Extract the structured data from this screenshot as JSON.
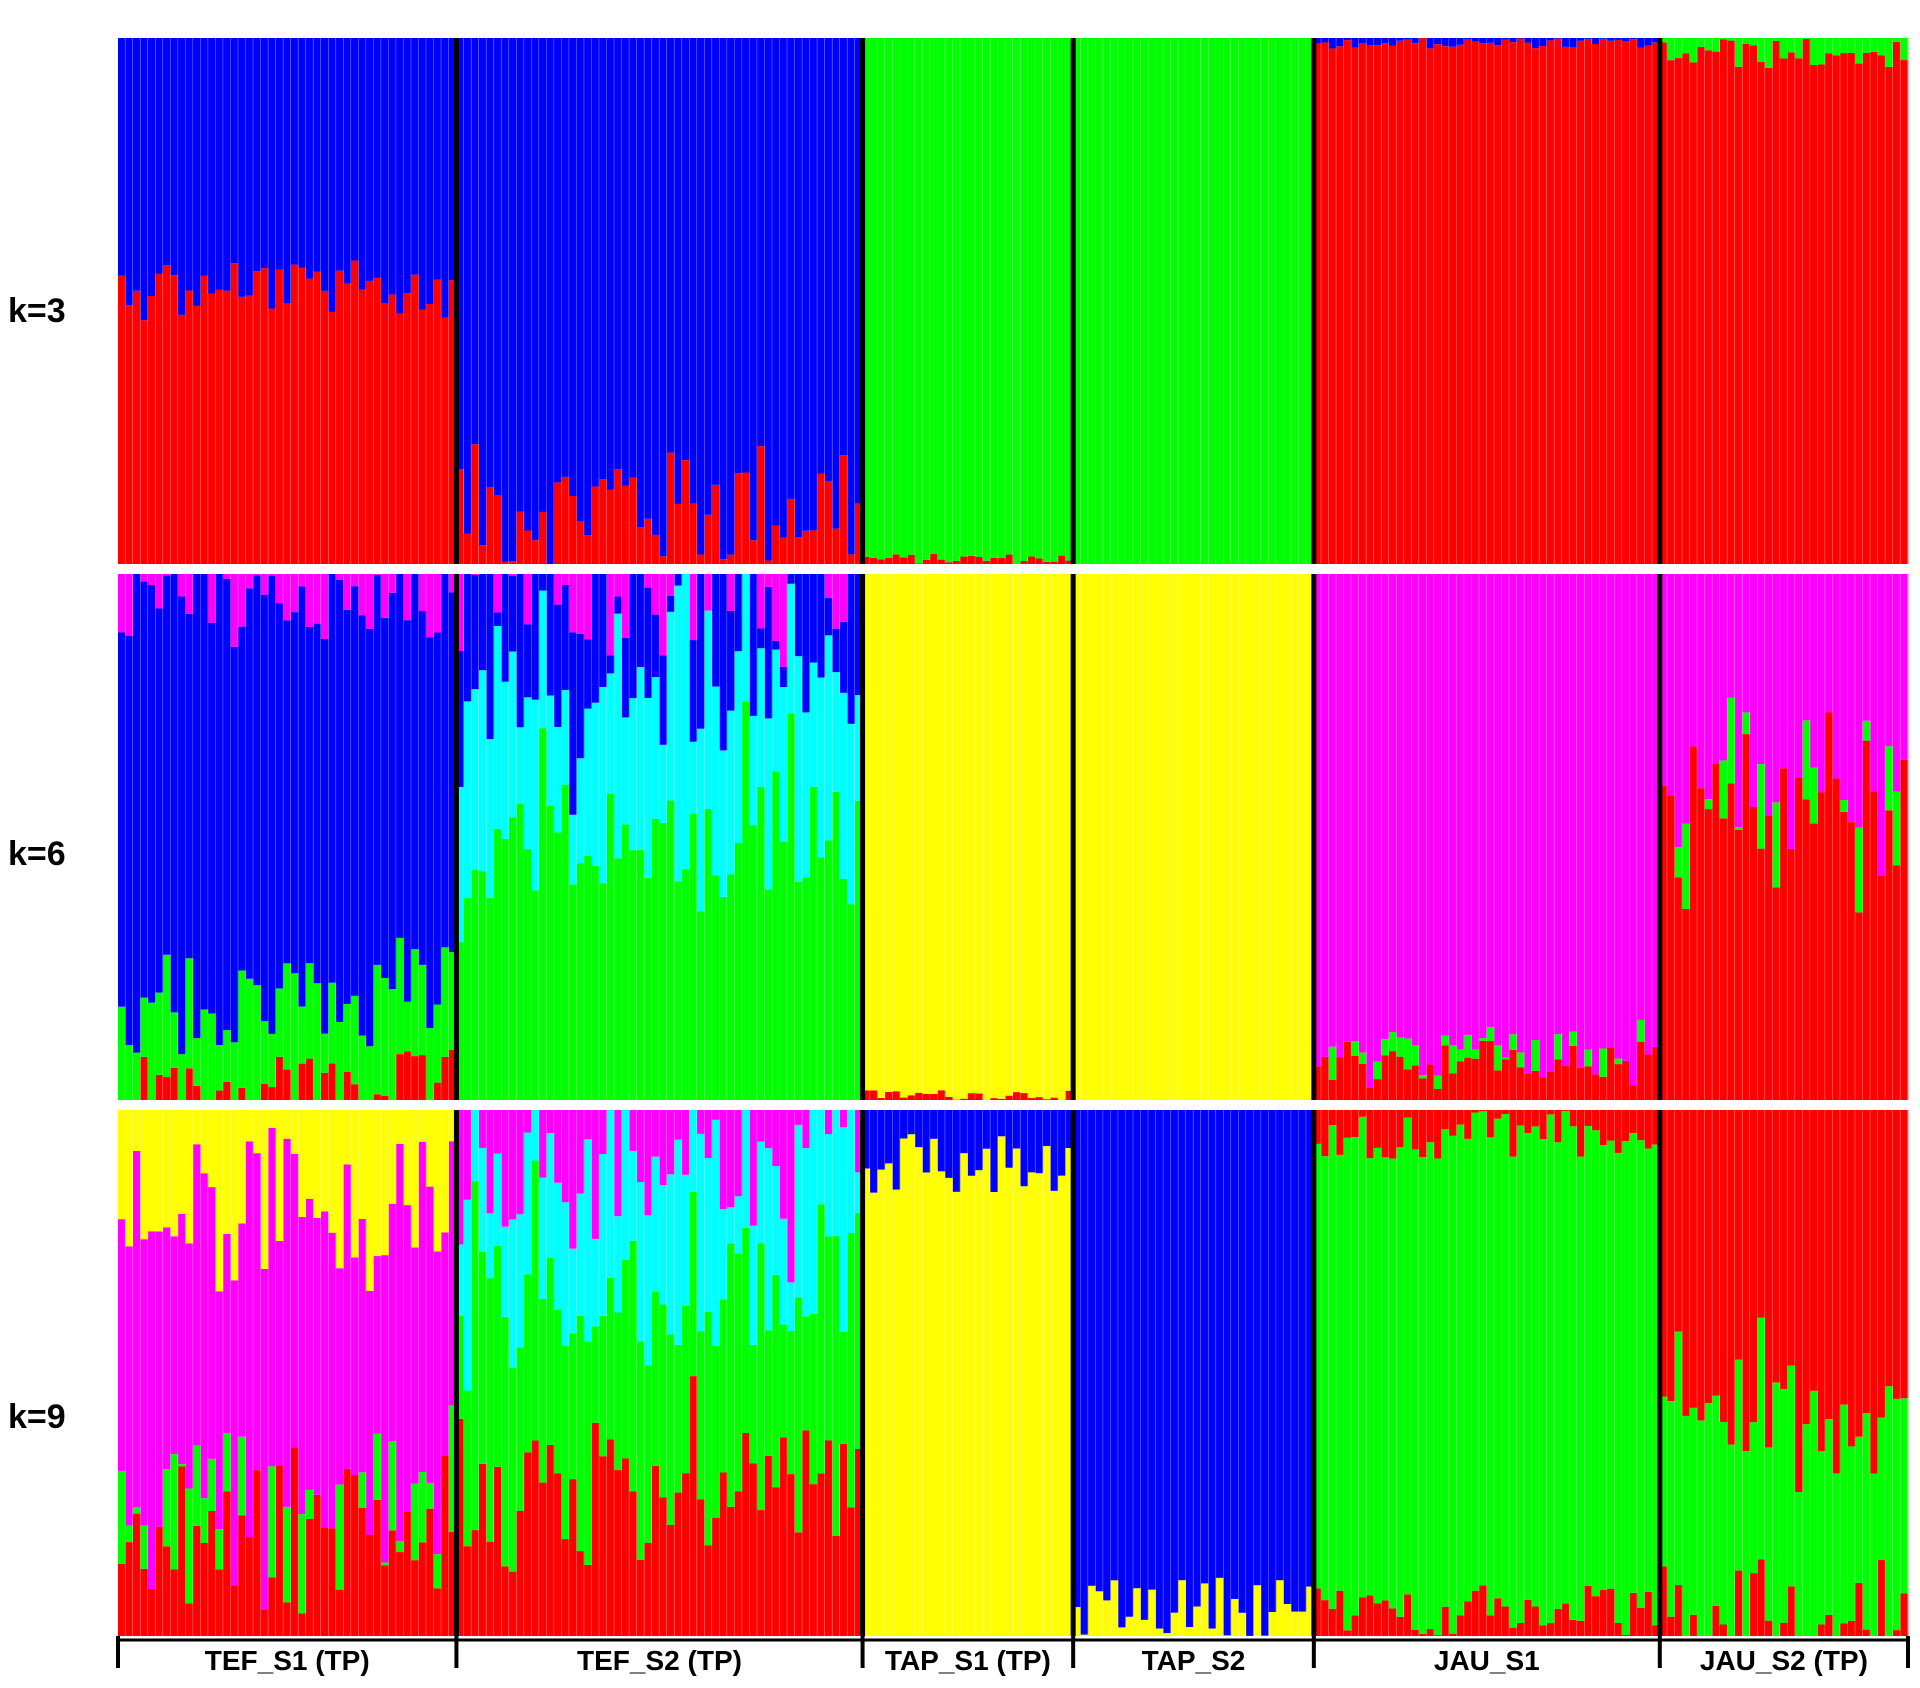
{
  "colors": {
    "red": "#ff0000",
    "blue": "#0000ff",
    "green": "#00ff00",
    "yellow": "#ffff00",
    "magenta": "#ff00ff",
    "cyan": "#00ffff"
  },
  "chart_data": {
    "type": "bar",
    "subtype": "stacked-admixture",
    "title": "",
    "xlabel": "",
    "ylabel": "",
    "ylim": [
      0,
      1
    ],
    "populations": [
      {
        "name": "TEF_S1 (TP)",
        "n": 45
      },
      {
        "name": "TEF_S2 (TP)",
        "n": 54
      },
      {
        "name": "TAP_S1 (TP)",
        "n": 28
      },
      {
        "name": "TAP_S2",
        "n": 32
      },
      {
        "name": "JAU_S1",
        "n": 46
      },
      {
        "name": "JAU_S2 (TP)",
        "n": 33
      }
    ],
    "panels": [
      {
        "label": "k=3",
        "segments": [
          {
            "pop": 0,
            "stack": [
              [
                "red",
                0.52
              ],
              [
                "blue",
                0.48
              ]
            ],
            "noise": 0.08,
            "accent": "green"
          },
          {
            "pop": 1,
            "stack": [
              [
                "red",
                0.12
              ],
              [
                "blue",
                0.88
              ]
            ],
            "noise": 0.14,
            "accent": "green"
          },
          {
            "pop": 2,
            "stack": [
              [
                "red",
                0.01
              ],
              [
                "green",
                0.99
              ]
            ],
            "noise": 0.01,
            "accent": "blue"
          },
          {
            "pop": 3,
            "stack": [
              [
                "green",
                1.0
              ]
            ],
            "noise": 0.0,
            "accent": "green"
          },
          {
            "pop": 4,
            "stack": [
              [
                "red",
                0.99
              ],
              [
                "blue",
                0.01
              ]
            ],
            "noise": 0.01,
            "accent": "green"
          },
          {
            "pop": 5,
            "stack": [
              [
                "red",
                0.97
              ],
              [
                "green",
                0.03
              ]
            ],
            "noise": 0.03,
            "accent": "blue"
          }
        ]
      },
      {
        "label": "k=6",
        "segments": [
          {
            "pop": 0,
            "stack": [
              [
                "red",
                0.01
              ],
              [
                "green",
                0.18
              ],
              [
                "blue",
                0.77
              ],
              [
                "magenta",
                0.04
              ]
            ],
            "noise": 0.1,
            "accent": "cyan"
          },
          {
            "pop": 1,
            "stack": [
              [
                "green",
                0.5
              ],
              [
                "cyan",
                0.3
              ],
              [
                "blue",
                0.17
              ],
              [
                "magenta",
                0.03
              ]
            ],
            "noise": 0.18,
            "accent": "yellow"
          },
          {
            "pop": 2,
            "stack": [
              [
                "red",
                0.01
              ],
              [
                "yellow",
                0.99
              ]
            ],
            "noise": 0.01,
            "accent": "green"
          },
          {
            "pop": 3,
            "stack": [
              [
                "yellow",
                1.0
              ]
            ],
            "noise": 0.0,
            "accent": "yellow"
          },
          {
            "pop": 4,
            "stack": [
              [
                "red",
                0.07
              ],
              [
                "green",
                0.02
              ],
              [
                "magenta",
                0.91
              ]
            ],
            "noise": 0.05,
            "accent": "blue"
          },
          {
            "pop": 5,
            "stack": [
              [
                "red",
                0.55
              ],
              [
                "green",
                0.02
              ],
              [
                "magenta",
                0.43
              ]
            ],
            "noise": 0.2,
            "accent": "blue"
          }
        ]
      },
      {
        "label": "k=9",
        "segments": [
          {
            "pop": 0,
            "stack": [
              [
                "red",
                0.2
              ],
              [
                "green",
                0.08
              ],
              [
                "magenta",
                0.54
              ],
              [
                "yellow",
                0.18
              ]
            ],
            "noise": 0.16,
            "accent": "cyan"
          },
          {
            "pop": 1,
            "stack": [
              [
                "red",
                0.3
              ],
              [
                "green",
                0.35
              ],
              [
                "cyan",
                0.25
              ],
              [
                "magenta",
                0.1
              ]
            ],
            "noise": 0.18,
            "accent": "yellow"
          },
          {
            "pop": 2,
            "stack": [
              [
                "yellow",
                0.9
              ],
              [
                "blue",
                0.1
              ]
            ],
            "noise": 0.08,
            "accent": "yellow"
          },
          {
            "pop": 3,
            "stack": [
              [
                "yellow",
                0.06
              ],
              [
                "blue",
                0.94
              ]
            ],
            "noise": 0.06,
            "accent": "blue"
          },
          {
            "pop": 4,
            "stack": [
              [
                "red",
                0.05
              ],
              [
                "green",
                0.9
              ],
              [
                "red",
                0.05
              ]
            ],
            "noise": 0.05,
            "accent": "magenta"
          },
          {
            "pop": 5,
            "stack": [
              [
                "red",
                0.03
              ],
              [
                "green",
                0.4
              ],
              [
                "red",
                0.57
              ]
            ],
            "noise": 0.15,
            "accent": "yellow"
          }
        ]
      }
    ]
  }
}
